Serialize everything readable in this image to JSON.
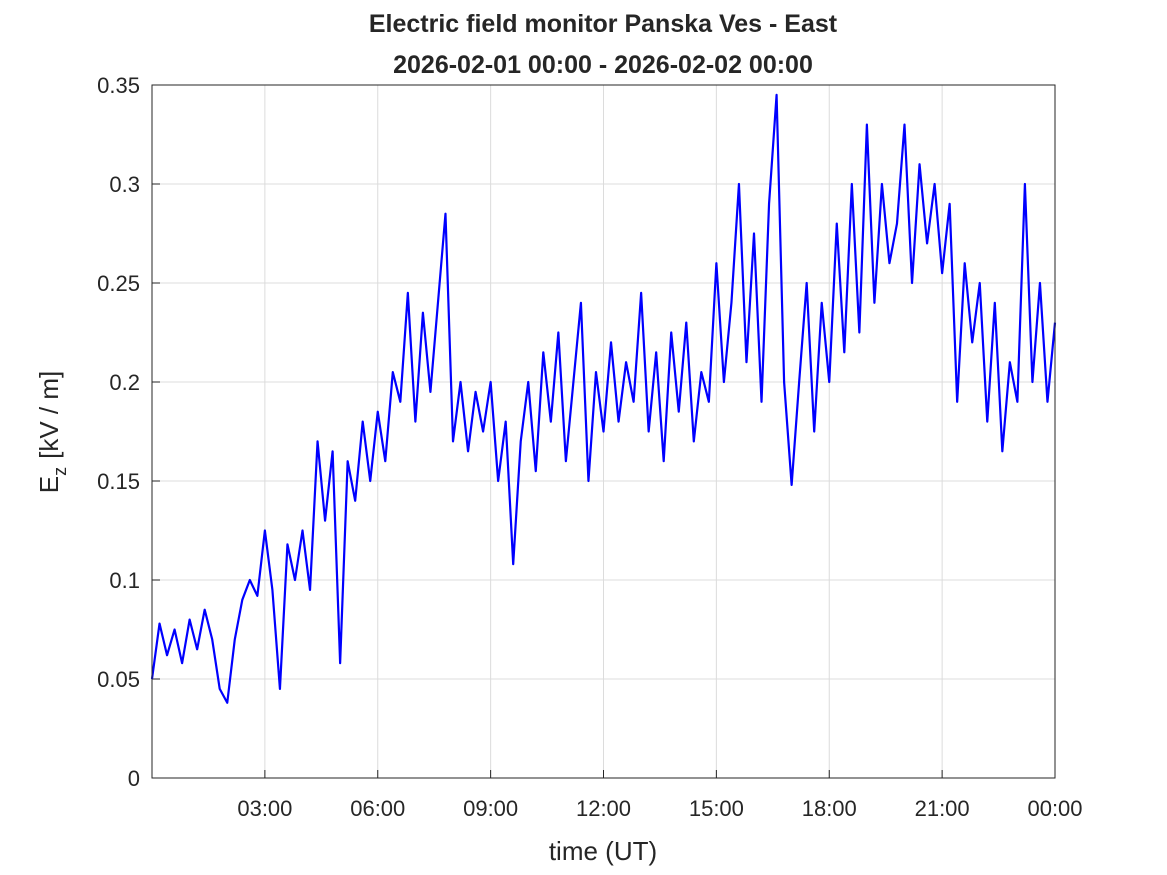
{
  "chart_data": {
    "type": "line",
    "title": "Electric field monitor Panska Ves - East",
    "subtitle": "2026-02-01 00:00 - 2026-02-02 00:00",
    "xlabel": "time (UT)",
    "ylabel": [
      "E",
      "z",
      "[kV / m]"
    ],
    "xlim": [
      0,
      24
    ],
    "xticks": [
      {
        "value": 3,
        "label": "03:00"
      },
      {
        "value": 6,
        "label": "06:00"
      },
      {
        "value": 9,
        "label": "09:00"
      },
      {
        "value": 12,
        "label": "12:00"
      },
      {
        "value": 15,
        "label": "15:00"
      },
      {
        "value": 18,
        "label": "18:00"
      },
      {
        "value": 21,
        "label": "21:00"
      },
      {
        "value": 24,
        "label": "00:00"
      }
    ],
    "ylim": [
      0,
      0.35
    ],
    "yticks": [
      0,
      0.05,
      0.1,
      0.15,
      0.2,
      0.25,
      0.3,
      0.35
    ],
    "grid": true,
    "x": [
      0,
      0.2,
      0.4,
      0.6,
      0.8,
      1,
      1.2,
      1.4,
      1.6,
      1.8,
      2,
      2.2,
      2.4,
      2.6,
      2.8,
      3,
      3.2,
      3.4,
      3.6,
      3.8,
      4,
      4.2,
      4.4,
      4.6,
      4.8,
      5,
      5.2,
      5.4,
      5.6,
      5.8,
      6,
      6.2,
      6.4,
      6.6,
      6.8,
      7,
      7.2,
      7.4,
      7.6,
      7.8,
      8,
      8.2,
      8.4,
      8.6,
      8.8,
      9,
      9.2,
      9.4,
      9.6,
      9.8,
      10,
      10.2,
      10.4,
      10.6,
      10.8,
      11,
      11.2,
      11.4,
      11.6,
      11.8,
      12,
      12.2,
      12.4,
      12.6,
      12.8,
      13,
      13.2,
      13.4,
      13.6,
      13.8,
      14,
      14.2,
      14.4,
      14.6,
      14.8,
      15,
      15.2,
      15.4,
      15.6,
      15.8,
      16,
      16.2,
      16.4,
      16.6,
      16.8,
      17,
      17.2,
      17.4,
      17.6,
      17.8,
      18,
      18.2,
      18.4,
      18.6,
      18.8,
      19,
      19.2,
      19.4,
      19.6,
      19.8,
      20,
      20.2,
      20.4,
      20.6,
      20.8,
      21,
      21.2,
      21.4,
      21.6,
      21.8,
      22,
      22.2,
      22.4,
      22.6,
      22.8,
      23,
      23.2,
      23.4,
      23.6,
      23.8,
      24
    ],
    "series": [
      {
        "name": "Ez",
        "color": "#0000ff",
        "values": [
          0.05,
          0.078,
          0.062,
          0.075,
          0.058,
          0.08,
          0.065,
          0.085,
          0.07,
          0.045,
          0.038,
          0.07,
          0.09,
          0.1,
          0.092,
          0.125,
          0.095,
          0.045,
          0.118,
          0.1,
          0.125,
          0.095,
          0.17,
          0.13,
          0.165,
          0.058,
          0.16,
          0.14,
          0.18,
          0.15,
          0.185,
          0.16,
          0.205,
          0.19,
          0.245,
          0.18,
          0.235,
          0.195,
          0.24,
          0.285,
          0.17,
          0.2,
          0.165,
          0.195,
          0.175,
          0.2,
          0.15,
          0.18,
          0.108,
          0.17,
          0.2,
          0.155,
          0.215,
          0.18,
          0.225,
          0.16,
          0.2,
          0.24,
          0.15,
          0.205,
          0.175,
          0.22,
          0.18,
          0.21,
          0.19,
          0.245,
          0.175,
          0.215,
          0.16,
          0.225,
          0.185,
          0.23,
          0.17,
          0.205,
          0.19,
          0.26,
          0.2,
          0.24,
          0.3,
          0.21,
          0.275,
          0.19,
          0.29,
          0.345,
          0.2,
          0.148,
          0.2,
          0.25,
          0.175,
          0.24,
          0.2,
          0.28,
          0.215,
          0.3,
          0.225,
          0.33,
          0.24,
          0.3,
          0.26,
          0.28,
          0.33,
          0.25,
          0.31,
          0.27,
          0.3,
          0.255,
          0.29,
          0.19,
          0.26,
          0.22,
          0.25,
          0.18,
          0.24,
          0.165,
          0.21,
          0.19,
          0.3,
          0.2,
          0.25,
          0.19,
          0.23
        ]
      }
    ]
  }
}
